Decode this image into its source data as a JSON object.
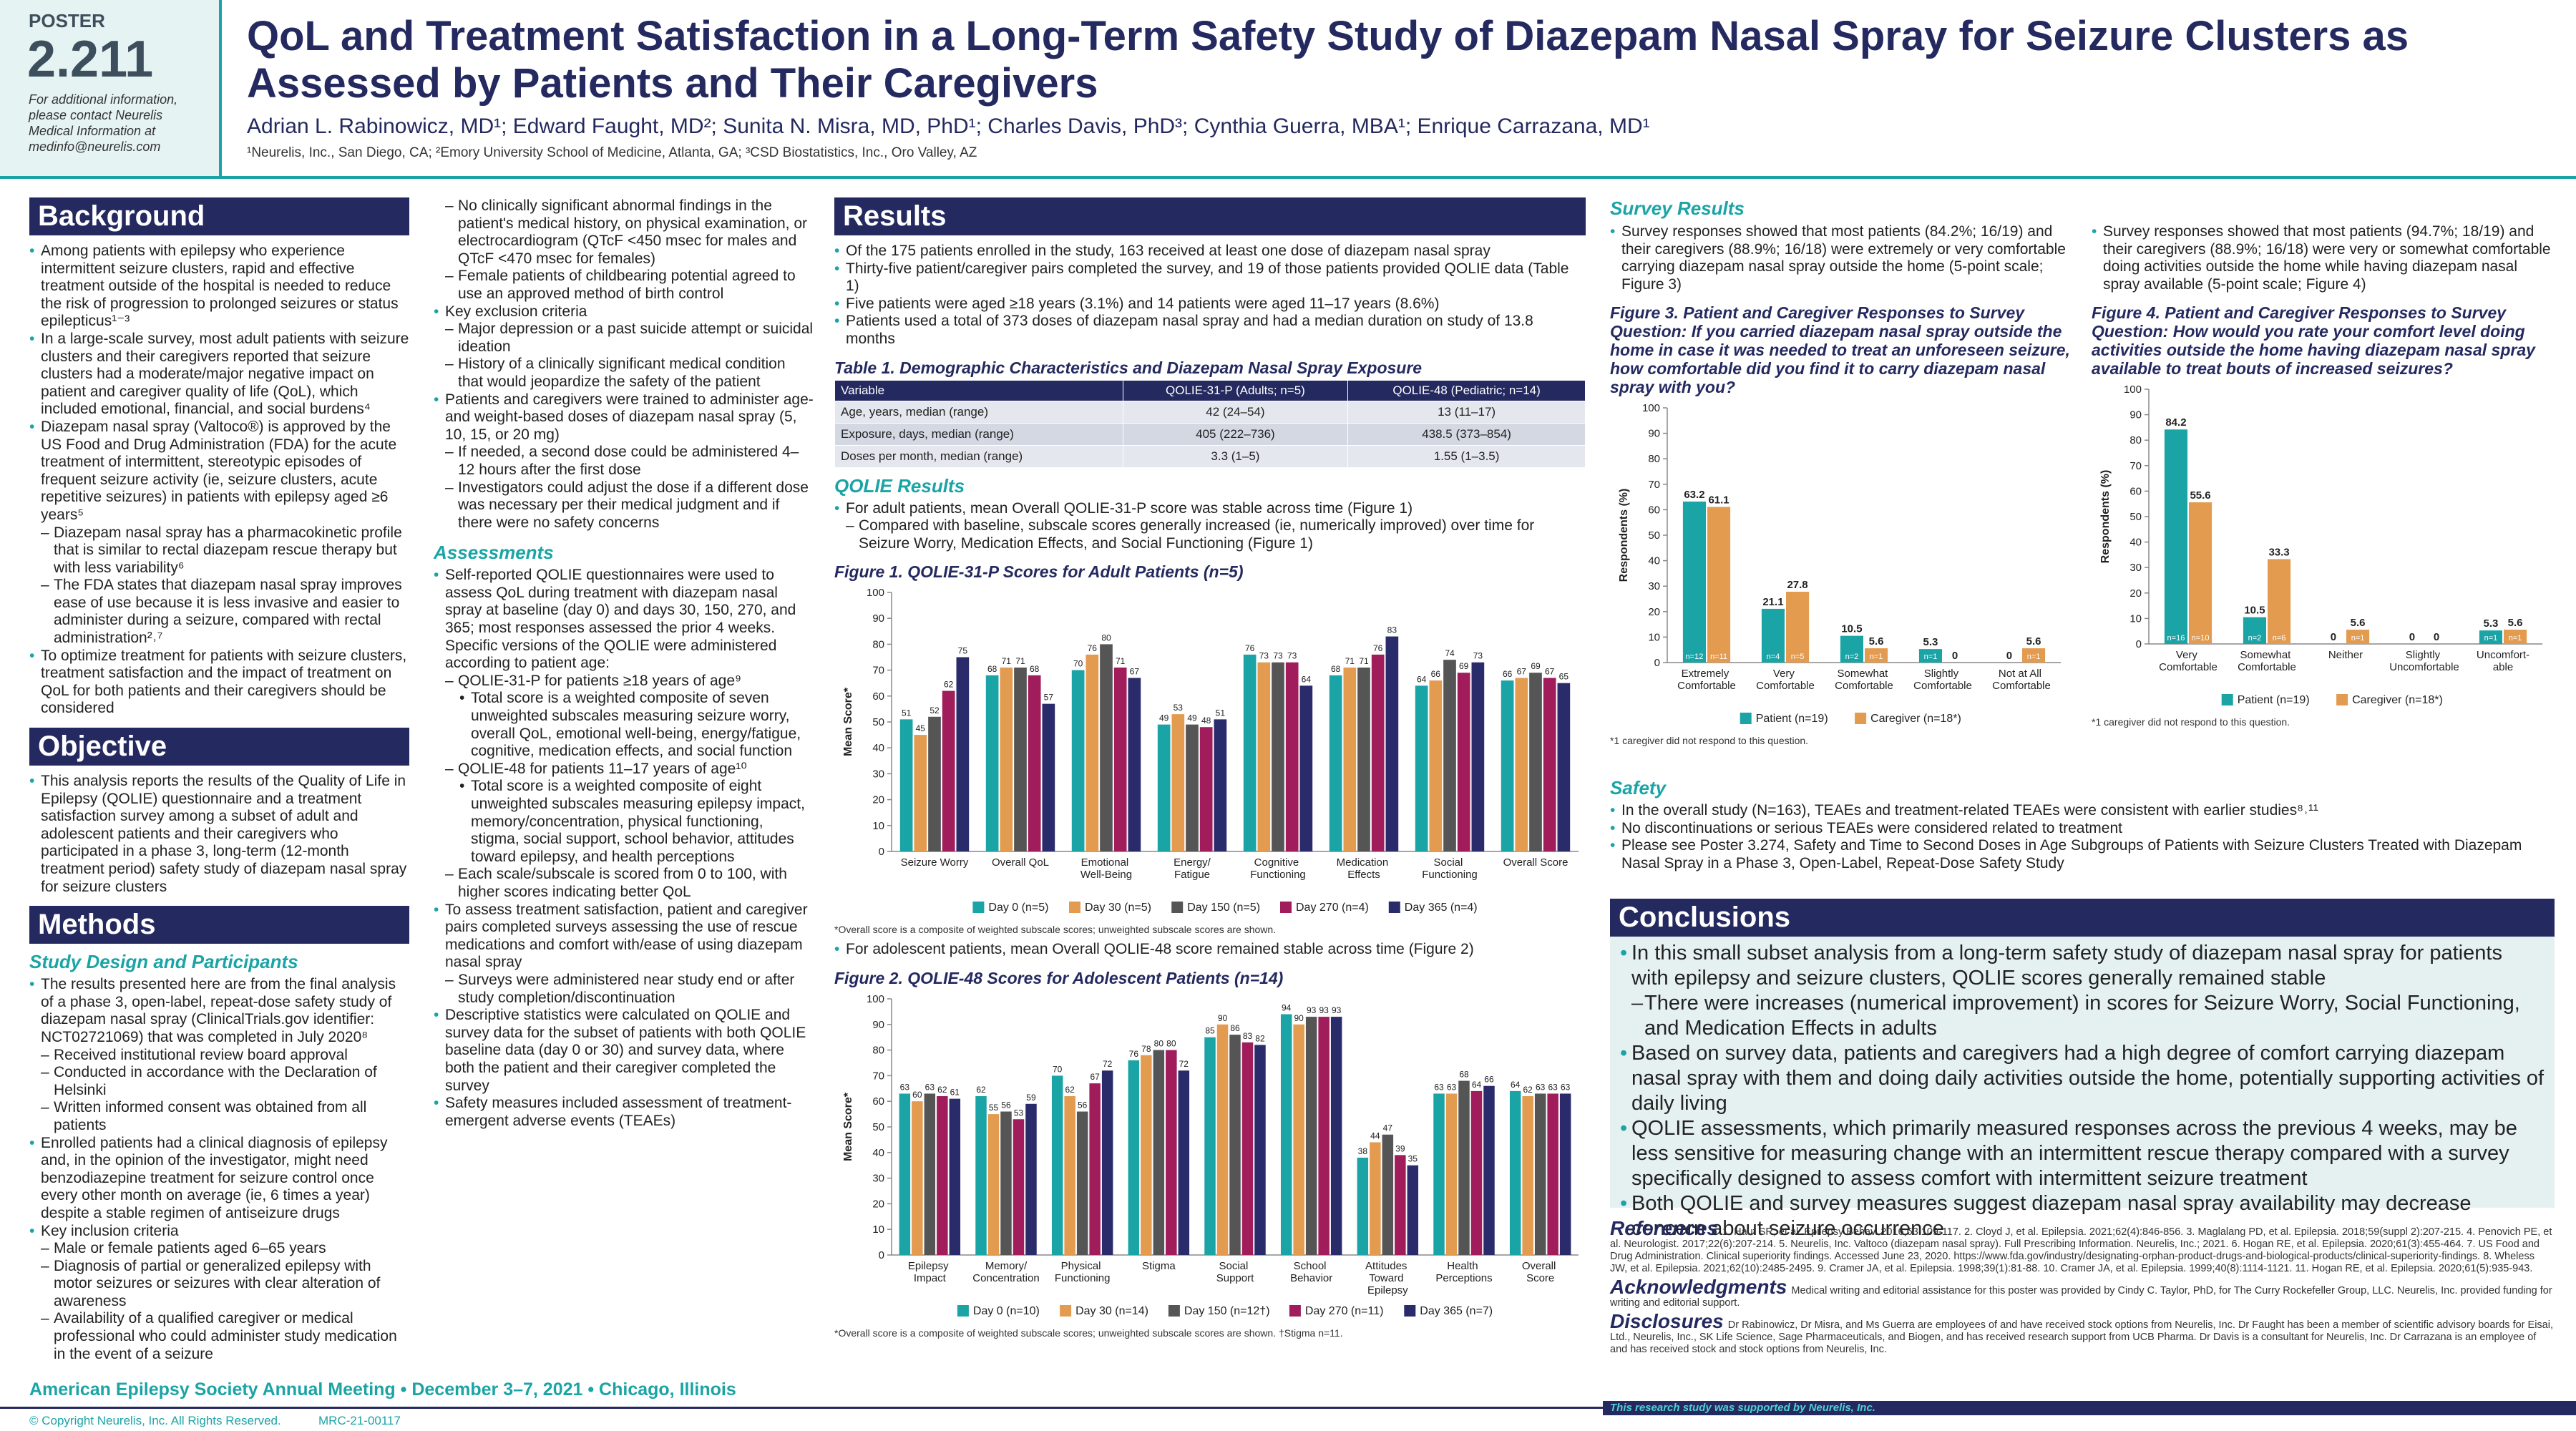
{
  "header": {
    "poster_label": "POSTER",
    "poster_number": "2.211",
    "contact": "For additional information, please contact Neurelis Medical Information at medinfo@neurelis.com",
    "title": "QoL and Treatment Satisfaction in a Long-Term Safety Study of Diazepam Nasal Spray for Seizure Clusters as Assessed by Patients and Their Caregivers",
    "authors": "Adrian L. Rabinowicz, MD¹; Edward Faught, MD²; Sunita N. Misra, MD, PhD¹; Charles Davis, PhD³; Cynthia Guerra, MBA¹; Enrique Carrazana, MD¹",
    "affiliations": "¹Neurelis, Inc., San Diego, CA; ²Emory University School of Medicine, Atlanta, GA; ³CSD Biostatistics, Inc., Oro Valley, AZ"
  },
  "background": {
    "heading": "Background",
    "items": [
      "Among patients with epilepsy who experience intermittent seizure clusters, rapid and effective treatment outside of the hospital is needed to reduce the risk of progression to prolonged seizures or status epilepticus¹⁻³",
      "In a large-scale survey, most adult patients with seizure clusters and their caregivers reported that seizure clusters had a moderate/major negative impact on patient and caregiver quality of life (QoL), which included emotional, financial, and social burdens⁴",
      {
        "text": "Diazepam nasal spray (Valtoco®) is approved by the US Food and Drug Administration (FDA) for the acute treatment of intermittent, stereotypic episodes of frequent seizure activity (ie, seizure clusters, acute repetitive seizures) in patients with epilepsy aged ≥6 years⁵",
        "items": [
          "Diazepam nasal spray has a pharmacokinetic profile that is similar to rectal diazepam rescue therapy but with less variability⁶",
          "The FDA states that diazepam nasal spray improves ease of use because it is less invasive and easier to administer during a seizure, compared with rectal administration²˒⁷"
        ]
      },
      "To optimize treatment for patients with seizure clusters, treatment satisfaction and the impact of treatment on QoL for both patients and their caregivers should be considered"
    ]
  },
  "objective": {
    "heading": "Objective",
    "items": [
      "This analysis reports the results of the Quality of Life in Epilepsy (QOLIE) questionnaire and a treatment satisfaction survey among a subset of adult and adolescent patients and their caregivers who participated in a phase 3, long-term (12-month treatment period) safety study of diazepam nasal spray for seizure clusters"
    ]
  },
  "methods": {
    "heading": "Methods",
    "study_design": {
      "heading": "Study Design and Participants",
      "items": [
        {
          "text": "The results presented here are from the final analysis of a phase 3, open-label, repeat-dose safety study of diazepam nasal spray (ClinicalTrials.gov identifier: NCT02721069) that was completed in July 2020⁸",
          "items": [
            "Received institutional review board approval",
            "Conducted in accordance with the Declaration of Helsinki",
            "Written informed consent was obtained from all patients"
          ]
        },
        "Enrolled patients had a clinical diagnosis of epilepsy and, in the opinion of the investigator, might need benzodiazepine treatment for seizure control once every other month on average (ie, 6 times a year) despite a stable regimen of antiseizure drugs",
        {
          "text": "Key inclusion criteria",
          "items": [
            "Male or female patients aged 6–65 years",
            "Diagnosis of partial or generalized epilepsy with motor seizures or seizures with clear alteration of awareness",
            "Availability of a qualified caregiver or medical professional who could administer study medication in the event of a seizure",
            "No clinically significant abnormal findings in the patient's medical history, on physical examination, or electrocardiogram (QTcF <450 msec for males and QTcF <470 msec for females)",
            "Female patients of childbearing potential agreed to use an approved method of birth control"
          ]
        },
        {
          "text": "Key exclusion criteria",
          "items": [
            "Major depression or a past suicide attempt or suicidal ideation",
            "History of a clinically significant medical condition that would jeopardize the safety of the patient"
          ]
        },
        {
          "text": "Patients and caregivers were trained to administer age- and weight-based doses of diazepam nasal spray (5, 10, 15, or 20 mg)",
          "items": [
            "If needed, a second dose could be administered 4–12 hours after the first dose",
            "Investigators could adjust the dose if a different dose was necessary per their medical judgment and if there were no safety concerns"
          ]
        }
      ]
    },
    "assessments": {
      "heading": "Assessments",
      "items": [
        {
          "text": "Self-reported QOLIE questionnaires were used to assess QoL during treatment with diazepam nasal spray at baseline (day 0) and days 30, 150, 270, and 365; most responses assessed the prior 4 weeks. Specific versions of the QOLIE were administered according to patient age:",
          "items": [
            {
              "text": "QOLIE-31-P for patients ≥18 years of age⁹",
              "items": [
                "Total score is a weighted composite of seven unweighted subscales measuring seizure worry, overall QoL, emotional well-being, energy/fatigue, cognitive, medication effects, and social function"
              ]
            },
            {
              "text": "QOLIE-48 for patients 11–17 years of age¹⁰",
              "items": [
                "Total score is a weighted composite of eight unweighted subscales measuring epilepsy impact, memory/concentration, physical functioning, stigma, social support, school behavior, attitudes toward epilepsy, and health perceptions"
              ]
            },
            "Each scale/subscale is scored from 0 to 100, with higher scores indicating better QoL"
          ]
        },
        {
          "text": "To assess treatment satisfaction, patient and caregiver pairs completed surveys assessing the use of rescue medications and comfort with/ease of using diazepam nasal spray",
          "items": [
            "Surveys were administered near study end or after study completion/discontinuation"
          ]
        },
        "Descriptive statistics were calculated on QOLIE and survey data for the subset of patients with both QOLIE baseline data (day 0 or 30) and survey data, where both the patient and their caregiver completed the survey",
        "Safety measures included assessment of treatment-emergent adverse events (TEAEs)"
      ]
    }
  },
  "results": {
    "heading": "Results",
    "items": [
      "Of the 175 patients enrolled in the study, 163 received at least one dose of diazepam nasal spray",
      "Thirty-five patient/caregiver pairs completed the survey, and 19 of those patients provided QOLIE data (Table 1)",
      "Five patients were aged ≥18 years (3.1%) and 14 patients were aged 11–17 years (8.6%)",
      "Patients used a total of 373 doses of diazepam nasal spray and had a median duration on study of 13.8 months"
    ],
    "table": {
      "title": "Table 1. Demographic Characteristics and Diazepam Nasal Spray Exposure",
      "header": [
        "Variable",
        "QOLIE-31-P (Adults; n=5)",
        "QOLIE-48 (Pediatric; n=14)"
      ],
      "rows": [
        [
          "Age, years, median (range)",
          "42 (24–54)",
          "13 (11–17)"
        ],
        [
          "Exposure, days, median (range)",
          "405 (222–736)",
          "438.5 (373–854)"
        ],
        [
          "Doses per month, median (range)",
          "3.3 (1–5)",
          "1.55 (1–3.5)"
        ]
      ]
    },
    "qolie_heading": "QOLIE Results",
    "qolie_items": [
      {
        "text": "For adult patients, mean Overall QOLIE-31-P score was stable across time (Figure 1)",
        "items": [
          "Compared with baseline, subscale scores generally increased (ie, numerically improved) over time for Seizure Worry, Medication Effects, and Social Functioning (Figure 1)"
        ]
      }
    ],
    "adolescent_items": [
      "For adolescent patients, mean Overall QOLIE-48 score remained stable across time (Figure 2)"
    ]
  },
  "survey": {
    "heading": "Survey Results",
    "items_left": [
      "Survey responses showed that most patients (84.2%; 16/19) and their caregivers (88.9%; 16/18) were extremely or very comfortable carrying diazepam nasal spray outside the home (5-point scale; Figure 3)"
    ],
    "items_right": [
      "Survey responses showed that most patients (94.7%; 18/19) and their caregivers (88.9%; 16/18) were very or somewhat comfortable doing activities outside the home while having diazepam nasal spray available (5-point scale; Figure 4)"
    ]
  },
  "safety": {
    "heading": "Safety",
    "items": [
      "In the overall study (N=163), TEAEs and treatment-related TEAEs were consistent with earlier studies⁸˒¹¹",
      "No discontinuations or serious TEAEs were considered related to treatment",
      "Please see Poster 3.274, Safety and Time to Second Doses in Age Subgroups of Patients with Seizure Clusters Treated with Diazepam Nasal Spray in a Phase 3, Open-Label, Repeat-Dose Safety Study"
    ]
  },
  "conclusions": {
    "heading": "Conclusions",
    "items": [
      {
        "text": "In this small subset analysis from a long-term safety study of diazepam nasal spray for patients with epilepsy and seizure clusters, QOLIE scores generally remained stable",
        "items": [
          "There were increases (numerical improvement) in scores for Seizure Worry, Social Functioning, and Medication Effects in adults"
        ]
      },
      "Based on survey data, patients and caregivers had a high degree of comfort carrying diazepam nasal spray with them and doing daily activities outside the home, potentially supporting activities of daily living",
      "QOLIE assessments, which primarily measured responses across the previous 4 weeks, may be less sensitive for measuring change with an intermittent rescue therapy compared with a survey specifically designed to assess comfort with intermittent seizure treatment",
      "Both QOLIE and survey measures suggest diazepam nasal spray availability may decrease concern about seizure occurrence"
    ]
  },
  "references": {
    "heading": "References",
    "text": "1. Haut SR, et al. Epilepsy Behav. 2016;63:109-117. 2. Cloyd J, et al. Epilepsia. 2021;62(4):846-856. 3. Maglalang PD, et al. Epilepsia. 2018;59(suppl 2):207-215. 4. Penovich PE, et al. Neurologist. 2017;22(6):207-214. 5. Neurelis, Inc. Valtoco (diazepam nasal spray). Full Prescribing Information. Neurelis, Inc.; 2021. 6. Hogan RE, et al. Epilepsia. 2020;61(3):455-464. 7. US Food and Drug Administration. Clinical superiority findings. Accessed June 23, 2020. https://www.fda.gov/industry/designating-orphan-product-drugs-and-biological-products/clinical-superiority-findings. 8. Wheless JW, et al. Epilepsia. 2021;62(10):2485-2495. 9. Cramer JA, et al. Epilepsia. 1998;39(1):81-88. 10. Cramer JA, et al. Epilepsia. 1999;40(8):1114-1121. 11. Hogan RE, et al. Epilepsia. 2020;61(5):935-943."
  },
  "acknowledgments": {
    "heading": "Acknowledgments",
    "text": "Medical writing and editorial assistance for this poster was provided by Cindy C. Taylor, PhD, for The Curry Rockefeller Group, LLC. Neurelis, Inc. provided funding for writing and editorial support."
  },
  "disclosures": {
    "heading": "Disclosures",
    "text": "Dr Rabinowicz, Dr Misra, and Ms Guerra are employees of and have received stock options from Neurelis, Inc. Dr Faught has been a member of scientific advisory boards for Eisai, Ltd., Neurelis, Inc., SK Life Science, Sage Pharmaceuticals, and Biogen, and has received research support from UCB Pharma. Dr Davis is a consultant for Neurelis, Inc. Dr Carrazana is an employee of and has received stock and stock options from Neurelis, Inc."
  },
  "footer": {
    "meeting": "American Epilepsy Society Annual Meeting • December 3–7, 2021 • Chicago, Illinois",
    "copyright": "© Copyright Neurelis, Inc. All Rights Reserved.",
    "code": "MRC-21-00117",
    "support": "This research study was supported by Neurelis, Inc."
  },
  "chart_data": [
    {
      "type": "bar",
      "title": "Figure 1. QOLIE-31-P Scores for Adult Patients (n=5)",
      "y_label": "Mean Score*",
      "categories": [
        "Seizure Worry",
        "Overall QoL",
        "Emotional Well-Being",
        "Energy/Fatigue",
        "Cognitive Functioning",
        "Medication Effects",
        "Social Functioning",
        "Overall Score"
      ],
      "series": [
        {
          "name": "Day 0 (n=5)",
          "color": "#1ba4a6",
          "values": [
            51,
            68,
            70,
            49,
            76,
            68,
            64,
            66
          ]
        },
        {
          "name": "Day 30 (n=5)",
          "color": "#e39b4f",
          "values": [
            45,
            71,
            76,
            53,
            73,
            71,
            66,
            67
          ]
        },
        {
          "name": "Day 150 (n=5)",
          "color": "#555555",
          "values": [
            52,
            71,
            80,
            49,
            73,
            71,
            74,
            69
          ]
        },
        {
          "name": "Day 270 (n=4)",
          "color": "#a01c5b",
          "values": [
            62,
            68,
            71,
            48,
            73,
            76,
            69,
            67
          ]
        },
        {
          "name": "Day 365 (n=4)",
          "color": "#2a2b6b",
          "values": [
            75,
            57,
            67,
            51,
            64,
            83,
            73,
            65
          ]
        }
      ],
      "ylim": [
        0,
        100
      ],
      "yticks": [
        0,
        10,
        20,
        30,
        40,
        50,
        60,
        70,
        80,
        90,
        100
      ],
      "grid": false,
      "legend": "bottom",
      "note": "*Overall score is a composite of weighted subscale scores; unweighted subscale scores are shown."
    },
    {
      "type": "bar",
      "title": "Figure 2. QOLIE-48 Scores for Adolescent Patients (n=14)",
      "y_label": "Mean Score*",
      "categories": [
        "Epilepsy Impact",
        "Memory/Concentration",
        "Physical Functioning",
        "Stigma",
        "Social Support",
        "School Behavior",
        "Attitudes Toward Epilepsy",
        "Health Perceptions",
        "Overall Score"
      ],
      "series": [
        {
          "name": "Day 0 (n=10)",
          "color": "#1ba4a6",
          "values": [
            63,
            62,
            70,
            76,
            85,
            94,
            38,
            63,
            64
          ]
        },
        {
          "name": "Day 30 (n=14)",
          "color": "#e39b4f",
          "values": [
            60,
            55,
            62,
            78,
            90,
            90,
            44,
            63,
            62
          ]
        },
        {
          "name": "Day 150 (n=12†)",
          "color": "#555555",
          "values": [
            63,
            56,
            56,
            80,
            86,
            93,
            47,
            68,
            63
          ]
        },
        {
          "name": "Day 270 (n=11)",
          "color": "#a01c5b",
          "values": [
            62,
            53,
            67,
            80,
            83,
            93,
            39,
            64,
            63
          ]
        },
        {
          "name": "Day 365 (n=7)",
          "color": "#2a2b6b",
          "values": [
            61,
            59,
            72,
            72,
            82,
            93,
            35,
            66,
            63
          ]
        }
      ],
      "ylim": [
        0,
        100
      ],
      "yticks": [
        0,
        10,
        20,
        30,
        40,
        50,
        60,
        70,
        80,
        90,
        100
      ],
      "grid": false,
      "legend": "bottom",
      "note": "*Overall score is a composite of weighted subscale scores; unweighted subscale scores are shown. †Stigma n=11."
    },
    {
      "type": "bar",
      "title": "Figure 3. Patient and Caregiver Responses to Survey Question: If you carried diazepam nasal spray outside the home in case it was needed to treat an unforeseen seizure, how comfortable did you find it to carry diazepam nasal spray with you?",
      "y_label": "Respondents (%)",
      "categories": [
        "Extremely Comfortable",
        "Very Comfortable",
        "Somewhat Comfortable",
        "Slightly Comfortable",
        "Not at All Comfortable"
      ],
      "series": [
        {
          "name": "Patient (n=19)",
          "color": "#1ba4a6",
          "values": [
            63.2,
            21.1,
            10.5,
            5.3,
            0
          ],
          "n_labels": [
            "n=12",
            "n=4",
            "n=2",
            "n=1",
            null
          ]
        },
        {
          "name": "Caregiver (n=18*)",
          "color": "#e39b4f",
          "values": [
            61.1,
            27.8,
            5.6,
            0,
            5.6
          ],
          "n_labels": [
            "n=11",
            "n=5",
            "n=1",
            null,
            "n=1"
          ]
        }
      ],
      "ylim": [
        0,
        100
      ],
      "yticks": [
        0,
        10,
        20,
        30,
        40,
        50,
        60,
        70,
        80,
        90,
        100
      ],
      "grid": false,
      "legend": "bottom",
      "note": "*1 caregiver did not respond to this question."
    },
    {
      "type": "bar",
      "title": "Figure 4. Patient and Caregiver Responses to Survey Question: How would you rate your comfort level doing activities outside the home having diazepam nasal spray available to treat bouts of increased seizures?",
      "y_label": "Respondents (%)",
      "categories": [
        "Very Comfortable",
        "Somewhat Comfortable",
        "Neither",
        "Slightly Uncomfortable",
        "Uncomfort-able"
      ],
      "series": [
        {
          "name": "Patient (n=19)",
          "color": "#1ba4a6",
          "values": [
            84.2,
            10.5,
            0,
            0,
            5.3
          ],
          "n_labels": [
            "n=16",
            "n=2",
            null,
            null,
            "n=1"
          ]
        },
        {
          "name": "Caregiver (n=18*)",
          "color": "#e39b4f",
          "values": [
            55.6,
            33.3,
            5.6,
            0,
            5.6
          ],
          "n_labels": [
            "n=10",
            "n=6",
            "n=1",
            null,
            "n=1"
          ]
        }
      ],
      "ylim": [
        0,
        100
      ],
      "yticks": [
        0,
        10,
        20,
        30,
        40,
        50,
        60,
        70,
        80,
        90,
        100
      ],
      "grid": false,
      "legend": "bottom",
      "note": "*1 caregiver did not respond to this question."
    }
  ]
}
